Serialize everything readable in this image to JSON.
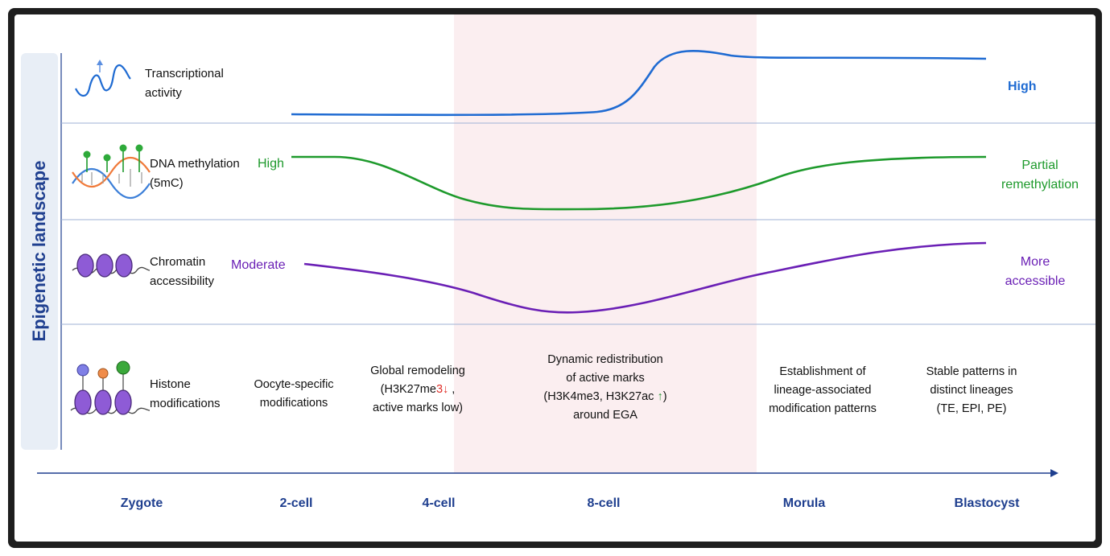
{
  "side_title": "Epigenetic landscape",
  "colors": {
    "transcription": "#1f6bd2",
    "methylation": "#1e9a2c",
    "chromatin": "#6a1fb5",
    "axis": "#1f3f8f",
    "highlight": "#fbeef0",
    "red_arrow": "#e0302a",
    "green_arrow": "#2e9a3a"
  },
  "rows": {
    "transcription": {
      "label_line1": "Transcriptional",
      "label_line2": "activity",
      "end_label": "High",
      "icon": "wave-icon"
    },
    "methylation": {
      "label_line1": "DNA methylation",
      "label_line2": "(5mC)",
      "start_label": "High",
      "end_label_line1": "Partial",
      "end_label_line2": "remethylation",
      "icon": "dna-icon"
    },
    "chromatin": {
      "label_line1": "Chromatin",
      "label_line2": "accessibility",
      "start_label": "Moderate",
      "end_label_line1": "More",
      "end_label_line2": "accessible",
      "icon": "nucleosome-icon"
    },
    "histone": {
      "label_line1": "Histone",
      "label_line2": "modifications",
      "icon": "histone-icon"
    }
  },
  "histone_notes": {
    "n1": {
      "line1": "Oocyte-specific",
      "line2": "modifications"
    },
    "n2": {
      "line1": "Global remodeling",
      "line2_pre": "(H3K27me",
      "line2_hl": "3",
      "line2_arrow": "↓",
      "line2_post": " ,",
      "line3": "active marks low)"
    },
    "n3": {
      "line1": "Dynamic redistribution",
      "line2": "of active marks",
      "line3_pre": "(H3K4me3, H3K27ac ",
      "line3_arrow": "↑",
      "line3_post": ")",
      "line4": "around EGA"
    },
    "n4": {
      "line1": "Establishment of",
      "line2": "lineage-associated",
      "line3": "modification patterns"
    },
    "n5": {
      "line1": "Stable patterns in",
      "line2": "distinct lineages",
      "line3": "(TE, EPI, PE)"
    }
  },
  "stages": [
    "Zygote",
    "2-cell",
    "4-cell",
    "8-cell",
    "Morula",
    "Blastocyst"
  ]
}
